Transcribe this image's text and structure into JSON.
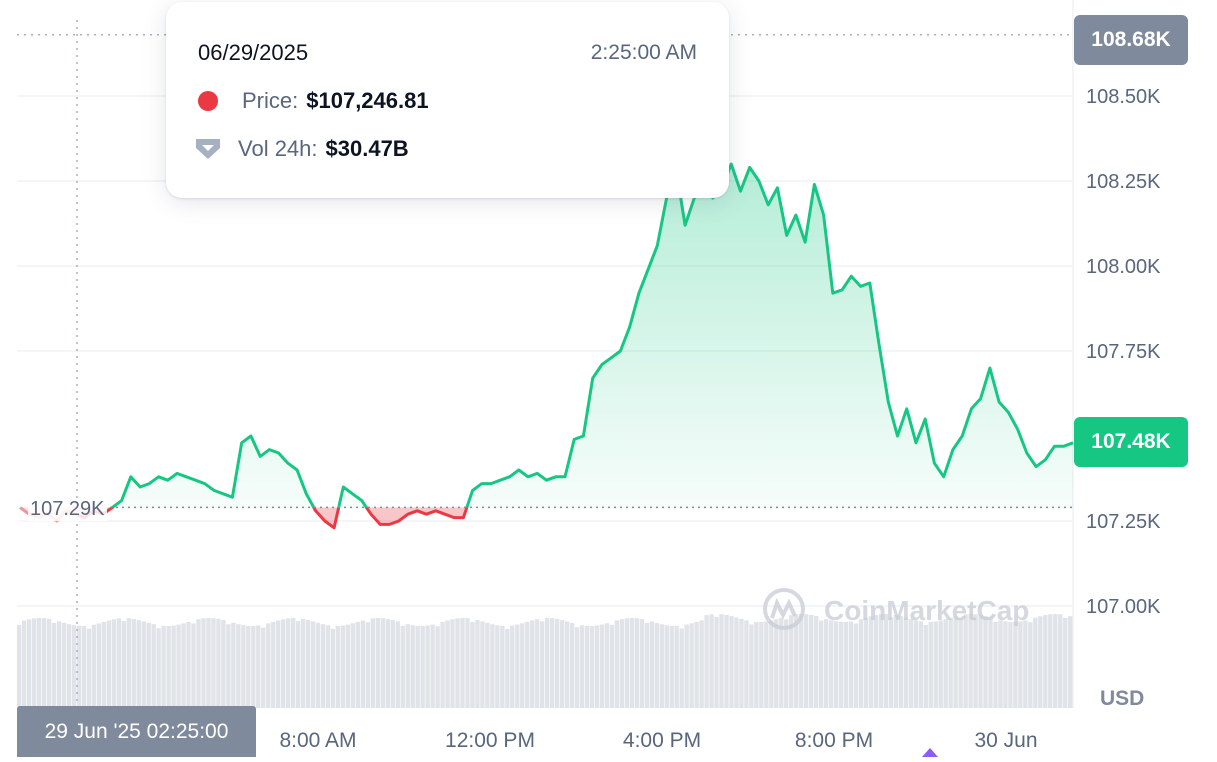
{
  "chart_data": {
    "type": "area",
    "title": "",
    "x_start": "29 Jun '25 02:25:00",
    "x_end": "30 Jun '25 ~02:00",
    "x_tick_labels": [
      "8:00 AM",
      "12:00 PM",
      "4:00 PM",
      "8:00 PM",
      "30 Jun"
    ],
    "y_tick_labels": [
      "108.68K",
      "108.50K",
      "108.25K",
      "108.00K",
      "107.75K",
      "107.48K",
      "107.25K",
      "107.00K"
    ],
    "y_ticks": [
      108.5,
      108.25,
      108.0,
      107.75,
      107.25,
      107.0
    ],
    "ylim": [
      106.9,
      108.68
    ],
    "y_unit": "K",
    "currency_label": "USD",
    "baseline": {
      "value": 107.29,
      "label": "107.29K"
    },
    "high": {
      "value": 108.68,
      "label": "108.68K"
    },
    "current": {
      "value": 107.48,
      "label": "107.48K"
    },
    "colors": {
      "up_line": "#16c784",
      "down_line": "#ea3943",
      "badge_gray": "#808a9d",
      "badge_green": "#16c784",
      "grid": "#eff2f5",
      "volume": "#e0e3e8"
    },
    "series": [
      {
        "values": [
          107.29,
          107.27,
          107.26,
          107.27,
          107.25,
          107.28,
          107.27,
          107.26,
          107.28,
          107.27,
          107.29,
          107.31,
          107.38,
          107.35,
          107.36,
          107.38,
          107.37,
          107.39,
          107.38,
          107.37,
          107.36,
          107.34,
          107.33,
          107.32,
          107.48,
          107.5,
          107.44,
          107.46,
          107.45,
          107.42,
          107.4,
          107.33,
          107.28,
          107.25,
          107.23,
          107.35,
          107.33,
          107.31,
          107.27,
          107.24,
          107.24,
          107.25,
          107.27,
          107.28,
          107.27,
          107.28,
          107.27,
          107.26,
          107.26,
          107.34,
          107.36,
          107.36,
          107.37,
          107.38,
          107.4,
          107.38,
          107.39,
          107.37,
          107.38,
          107.38,
          107.49,
          107.5,
          107.67,
          107.71,
          107.73,
          107.75,
          107.82,
          107.92,
          107.99,
          108.06,
          108.2,
          108.29,
          108.12,
          108.2,
          108.25,
          108.2,
          108.23,
          108.3,
          108.22,
          108.29,
          108.25,
          108.18,
          108.23,
          108.09,
          108.15,
          108.07,
          108.24,
          108.15,
          107.92,
          107.93,
          107.97,
          107.94,
          107.95,
          107.77,
          107.6,
          107.5,
          107.58,
          107.48,
          107.55,
          107.42,
          107.38,
          107.46,
          107.5,
          107.58,
          107.61,
          107.7,
          107.6,
          107.57,
          107.52,
          107.45,
          107.41,
          107.43,
          107.47,
          107.47,
          107.48
        ]
      }
    ],
    "volume_note": "24h volume bars across bottom band",
    "tooltip": {
      "date": "06/29/2025",
      "time": "2:25:00 AM",
      "price_label": "Price:",
      "price_value": "$107,246.81",
      "vol_label": "Vol 24h:",
      "vol_value": "$30.47B"
    },
    "crosshair_time_label": "29 Jun '25 02:25:00",
    "watermark": "CoinMarketCap"
  }
}
